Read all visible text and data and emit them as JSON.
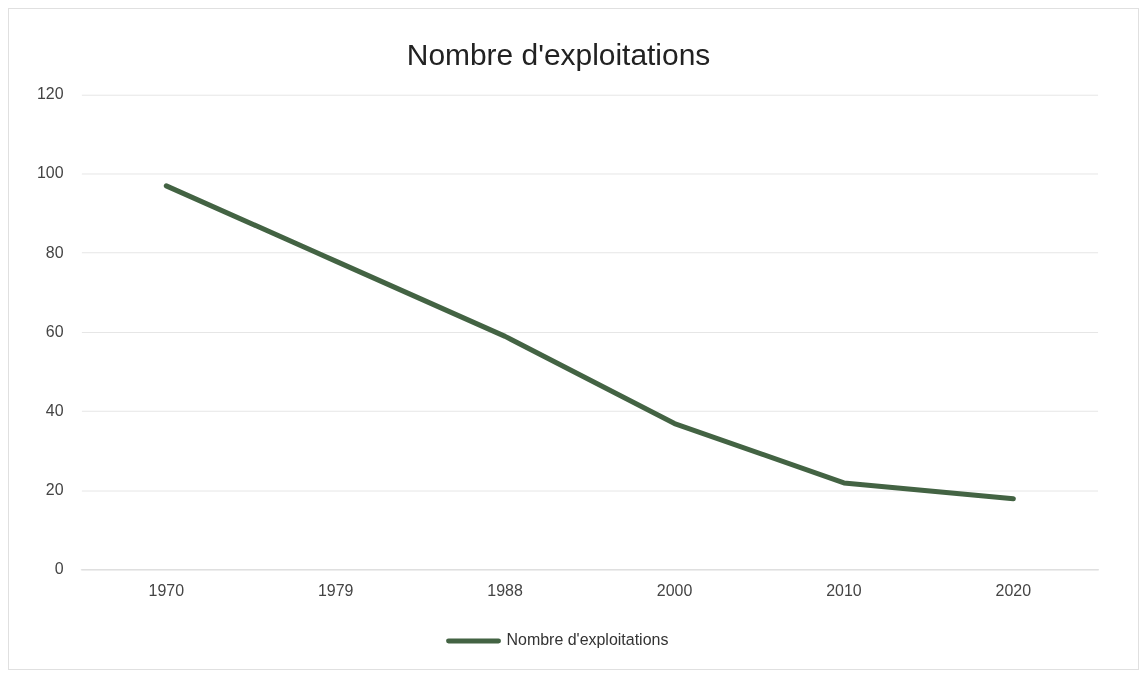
{
  "chart_data": {
    "type": "line",
    "title": "Nombre d'exploitations",
    "categories": [
      "1970",
      "1979",
      "1988",
      "2000",
      "2010",
      "2020"
    ],
    "series": [
      {
        "name": "Nombre d'exploitations",
        "color": "#436343",
        "values": [
          97,
          78,
          59,
          37,
          22,
          18
        ]
      }
    ],
    "ylim": [
      0,
      120
    ],
    "yticks": [
      0,
      20,
      40,
      60,
      80,
      100,
      120
    ],
    "grid": "y",
    "legend": "bottom",
    "marker": "none"
  }
}
